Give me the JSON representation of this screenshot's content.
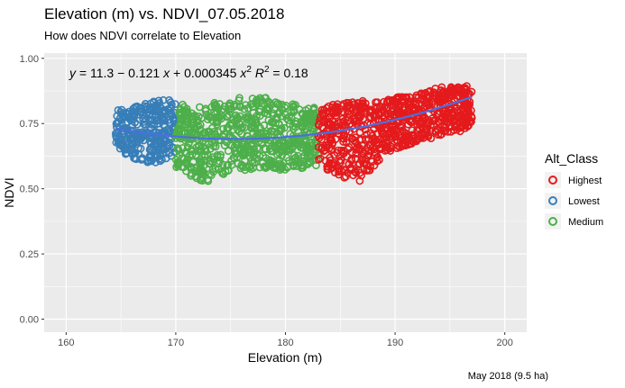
{
  "chart_data": {
    "type": "scatter",
    "title": "Elevation (m) vs. NDVI_07.05.2018",
    "subtitle": "How does NDVI correlate to Elevation",
    "caption": "May 2018 (9.5 ha)",
    "xlabel": "Elevation (m)",
    "ylabel": "NDVI",
    "xlim": [
      158,
      202
    ],
    "ylim": [
      -0.05,
      1.02
    ],
    "x_ticks": [
      160,
      170,
      180,
      190,
      200
    ],
    "y_ticks": [
      0.0,
      0.25,
      0.5,
      0.75,
      1.0
    ],
    "x_tick_labels": [
      "160",
      "170",
      "180",
      "190",
      "200"
    ],
    "y_tick_labels": [
      "0.00",
      "0.25",
      "0.50",
      "0.75",
      "1.00"
    ],
    "grid": true,
    "background": "#ebebeb",
    "legend": {
      "title": "Alt_Class",
      "position": "right",
      "entries": [
        {
          "label": "Highest",
          "color": "#e41a1c"
        },
        {
          "label": "Lowest",
          "color": "#377eb8"
        },
        {
          "label": "Medium",
          "color": "#4daf4a"
        }
      ]
    },
    "equation": {
      "intercept": "11.3",
      "coef_x": "0.121",
      "coef_x2": "0.000345",
      "r2": "0.18"
    },
    "fit": {
      "type": "quadratic",
      "color": "#4a6fe0",
      "a": 11.3,
      "b": -0.121,
      "c": 0.000345,
      "x_range": [
        164.5,
        197
      ]
    },
    "series": [
      {
        "name": "Lowest",
        "color": "#377eb8",
        "x_range": [
          164.5,
          170.0
        ],
        "envelope": [
          [
            164.5,
            0.66,
            0.8
          ],
          [
            165.5,
            0.63,
            0.81
          ],
          [
            166.5,
            0.61,
            0.82
          ],
          [
            167.5,
            0.6,
            0.83
          ],
          [
            168.5,
            0.6,
            0.84
          ],
          [
            169.5,
            0.62,
            0.84
          ],
          [
            170.0,
            0.64,
            0.83
          ]
        ]
      },
      {
        "name": "Medium",
        "color": "#4daf4a",
        "x_range": [
          170.0,
          183.0
        ],
        "envelope": [
          [
            170.0,
            0.58,
            0.82
          ],
          [
            171.0,
            0.56,
            0.83
          ],
          [
            172.5,
            0.52,
            0.81
          ],
          [
            174.0,
            0.55,
            0.84
          ],
          [
            176.0,
            0.57,
            0.85
          ],
          [
            178.0,
            0.58,
            0.86
          ],
          [
            180.0,
            0.57,
            0.83
          ],
          [
            182.0,
            0.58,
            0.82
          ],
          [
            183.0,
            0.59,
            0.82
          ]
        ]
      },
      {
        "name": "Highest",
        "color": "#e41a1c",
        "x_range": [
          183.0,
          197.0
        ],
        "envelope": [
          [
            183.0,
            0.6,
            0.82
          ],
          [
            184.5,
            0.55,
            0.83
          ],
          [
            185.5,
            0.52,
            0.83
          ],
          [
            187.0,
            0.53,
            0.84
          ],
          [
            188.5,
            0.6,
            0.84
          ],
          [
            190.0,
            0.65,
            0.85
          ],
          [
            192.0,
            0.68,
            0.86
          ],
          [
            194.0,
            0.7,
            0.89
          ],
          [
            196.0,
            0.72,
            0.89
          ],
          [
            197.0,
            0.75,
            0.9
          ]
        ]
      }
    ]
  }
}
